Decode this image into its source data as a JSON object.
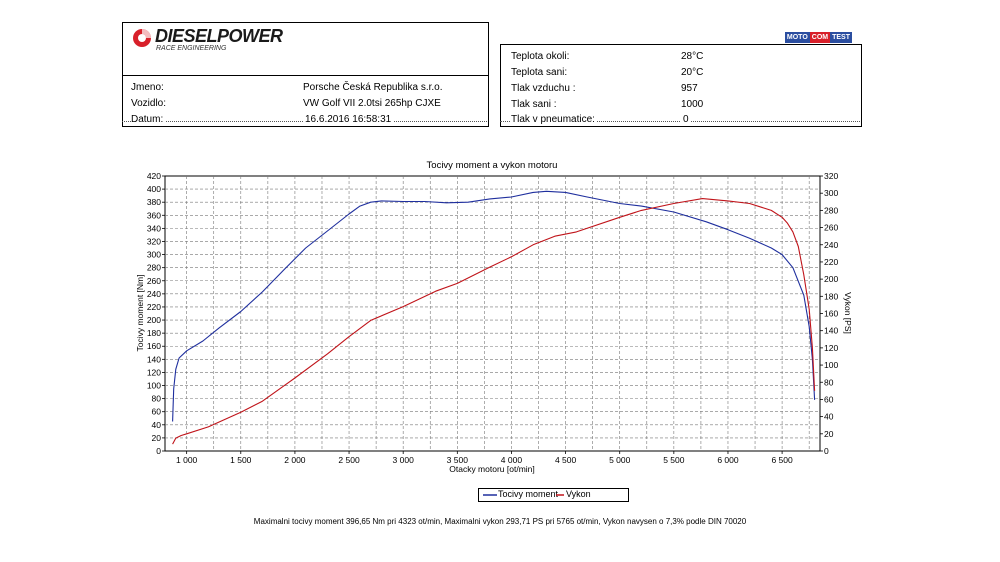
{
  "header": {
    "logo_text": "DIESELPOWER",
    "logo_sub": "RACE ENGINEERING",
    "brand_badge": [
      "MOTO",
      "COM",
      "TEST"
    ]
  },
  "vehicle_info": [
    {
      "label": "Jmeno:",
      "value": "Porsche Česká Republika s.r.o."
    },
    {
      "label": "Vozidlo:",
      "value": "VW Golf VII 2.0tsi 265hp CJXE"
    },
    {
      "label": "Datum:",
      "value": "16.6.2016 16:58:31"
    }
  ],
  "conditions": [
    {
      "label": "Teplota okoli:",
      "value": "28°C"
    },
    {
      "label": "Teplota sani:",
      "value": "20°C"
    },
    {
      "label": "Tlak vzduchu :",
      "value": "957"
    },
    {
      "label": "Tlak sani :",
      "value": "1000"
    },
    {
      "label": "Tlak v pneumatice:",
      "value": "0"
    }
  ],
  "colors": {
    "torque": "#1f2f9e",
    "power": "#c0141a",
    "grid": "#777777"
  },
  "chart_data": {
    "type": "line",
    "title": "Tocivy moment a vykon motoru",
    "xlabel": "Otacky motoru [ot/min]",
    "ylabel": "Tocivy moment [Nm]",
    "y2label": "Vykon [PS]",
    "xlim": [
      800,
      6850
    ],
    "ylim": [
      0,
      420
    ],
    "y2lim": [
      0,
      320
    ],
    "xticks": [
      1000,
      1500,
      2000,
      2500,
      3000,
      3500,
      4000,
      4500,
      5000,
      5500,
      6000,
      6500
    ],
    "xtick_labels": [
      "1 000",
      "1 500",
      "2 000",
      "2 500",
      "3 000",
      "3 500",
      "4 000",
      "4 500",
      "5 000",
      "5 500",
      "6 000",
      "6 500"
    ],
    "yticks": [
      0,
      20,
      40,
      60,
      80,
      100,
      120,
      140,
      160,
      180,
      200,
      220,
      240,
      260,
      280,
      300,
      320,
      340,
      360,
      380,
      400,
      420
    ],
    "y2ticks": [
      0,
      20,
      40,
      60,
      80,
      100,
      120,
      140,
      160,
      180,
      200,
      220,
      240,
      260,
      280,
      300,
      320
    ],
    "grid": true,
    "legend_position": "bottom-center",
    "series": [
      {
        "name": "Tocivy moment",
        "axis": "left",
        "x": [
          870,
          880,
          900,
          930,
          1000,
          1150,
          1300,
          1500,
          1700,
          1900,
          2100,
          2300,
          2500,
          2600,
          2700,
          2800,
          3000,
          3200,
          3400,
          3600,
          3800,
          4000,
          4200,
          4323,
          4500,
          4700,
          5000,
          5200,
          5500,
          5800,
          6000,
          6200,
          6400,
          6500,
          6600,
          6700,
          6750,
          6780,
          6800
        ],
        "y": [
          45,
          95,
          125,
          142,
          153,
          168,
          188,
          213,
          243,
          277,
          310,
          336,
          362,
          374,
          380,
          382,
          381,
          381,
          379,
          380,
          385,
          388,
          395,
          396.65,
          395,
          388,
          378,
          374,
          365,
          350,
          338,
          325,
          310,
          300,
          280,
          238,
          190,
          140,
          78
        ]
      },
      {
        "name": "Vykon",
        "axis": "right",
        "x": [
          870,
          900,
          950,
          1000,
          1200,
          1500,
          1700,
          2000,
          2300,
          2500,
          2700,
          3000,
          3300,
          3500,
          3800,
          4000,
          4200,
          4400,
          4600,
          5000,
          5200,
          5500,
          5765,
          6000,
          6200,
          6400,
          6500,
          6550,
          6600,
          6650,
          6700,
          6750,
          6780,
          6800
        ],
        "y": [
          8,
          15,
          18,
          20,
          28,
          45,
          58,
          85,
          113,
          133,
          152,
          168,
          186,
          195,
          214,
          226,
          240,
          250,
          255,
          272,
          280,
          288,
          293.71,
          291,
          288,
          280,
          272,
          265,
          255,
          238,
          205,
          165,
          120,
          70
        ]
      }
    ],
    "summary": "Maximalni tocivy moment 396,65 Nm pri 4323 ot/min,  Maximalni vykon 293,71 PS pri 5765 ot/min,  Vykon navysen o 7,3% podle DIN 70020"
  }
}
